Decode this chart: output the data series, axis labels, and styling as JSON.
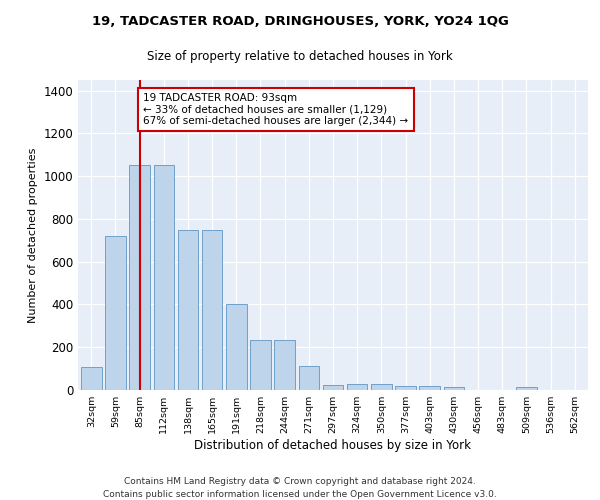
{
  "title1": "19, TADCASTER ROAD, DRINGHOUSES, YORK, YO24 1QG",
  "title2": "Size of property relative to detached houses in York",
  "xlabel": "Distribution of detached houses by size in York",
  "ylabel": "Number of detached properties",
  "categories": [
    "32sqm",
    "59sqm",
    "85sqm",
    "112sqm",
    "138sqm",
    "165sqm",
    "191sqm",
    "218sqm",
    "244sqm",
    "271sqm",
    "297sqm",
    "324sqm",
    "350sqm",
    "377sqm",
    "403sqm",
    "430sqm",
    "456sqm",
    "483sqm",
    "509sqm",
    "536sqm",
    "562sqm"
  ],
  "values": [
    107,
    720,
    1052,
    1052,
    748,
    748,
    400,
    235,
    235,
    112,
    25,
    28,
    28,
    20,
    20,
    15,
    0,
    0,
    15,
    0,
    0
  ],
  "bar_color": "#bdd4ea",
  "bar_edge_color": "#6fa0c8",
  "vline_x_index": 2,
  "vline_color": "#cc0000",
  "annotation_text": "19 TADCASTER ROAD: 93sqm\n← 33% of detached houses are smaller (1,129)\n67% of semi-detached houses are larger (2,344) →",
  "annotation_box_color": "#cc0000",
  "ylim": [
    0,
    1450
  ],
  "yticks": [
    0,
    200,
    400,
    600,
    800,
    1000,
    1200,
    1400
  ],
  "footer_line1": "Contains HM Land Registry data © Crown copyright and database right 2024.",
  "footer_line2": "Contains public sector information licensed under the Open Government Licence v3.0.",
  "bg_color": "#e8eef8",
  "fig_bg": "#ffffff"
}
